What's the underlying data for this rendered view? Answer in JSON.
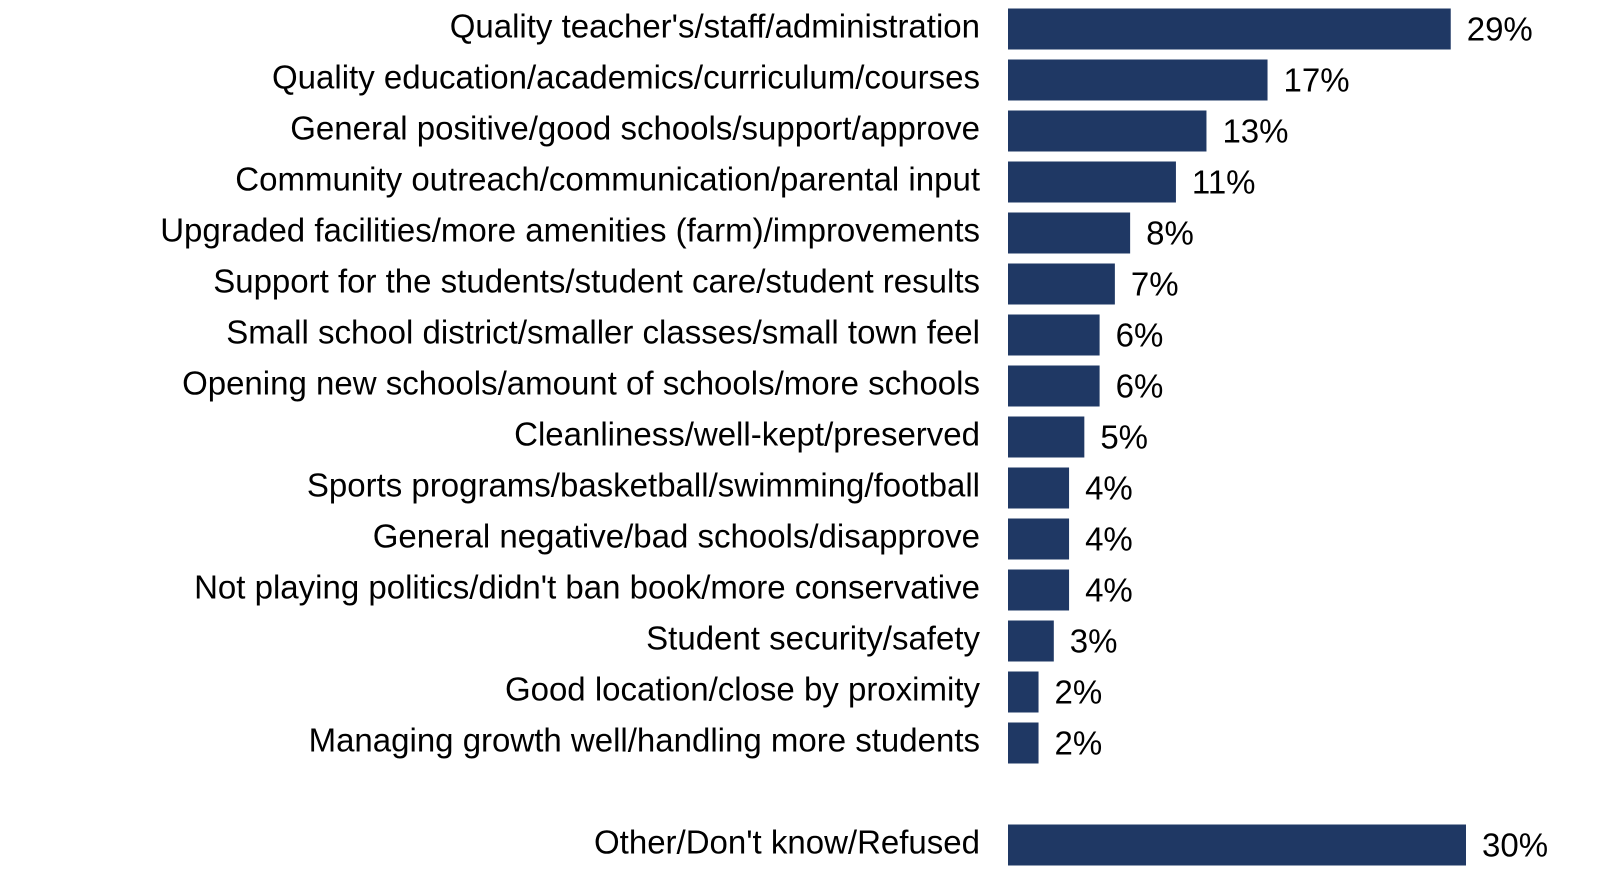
{
  "chart_data": {
    "type": "bar",
    "orientation": "horizontal",
    "color": "#1f3864",
    "categories": [
      "Quality teacher's/staff/administration",
      "Quality education/academics/curriculum/courses",
      "General positive/good schools/support/approve",
      "Community outreach/communication/parental input",
      "Upgraded facilities/more amenities (farm)/improvements",
      "Support for the students/student care/student results",
      "Small school district/smaller classes/small town feel",
      "Opening new schools/amount of schools/more schools",
      "Cleanliness/well-kept/preserved",
      "Sports programs/basketball/swimming/football",
      "General negative/bad schools/disapprove",
      "Not playing politics/didn't ban book/more conservative",
      "Student security/safety",
      "Good location/close by proximity",
      "Managing growth well/handling more students",
      null,
      "Other/Don't know/Refused"
    ],
    "values": [
      29,
      17,
      13,
      11,
      8,
      7,
      6,
      6,
      5,
      4,
      4,
      4,
      3,
      2,
      2,
      null,
      30
    ],
    "value_labels": [
      "29%",
      "17%",
      "13%",
      "11%",
      "8%",
      "7%",
      "6%",
      "6%",
      "5%",
      "4%",
      "4%",
      "4%",
      "3%",
      "2%",
      "2%",
      null,
      "30%"
    ]
  }
}
